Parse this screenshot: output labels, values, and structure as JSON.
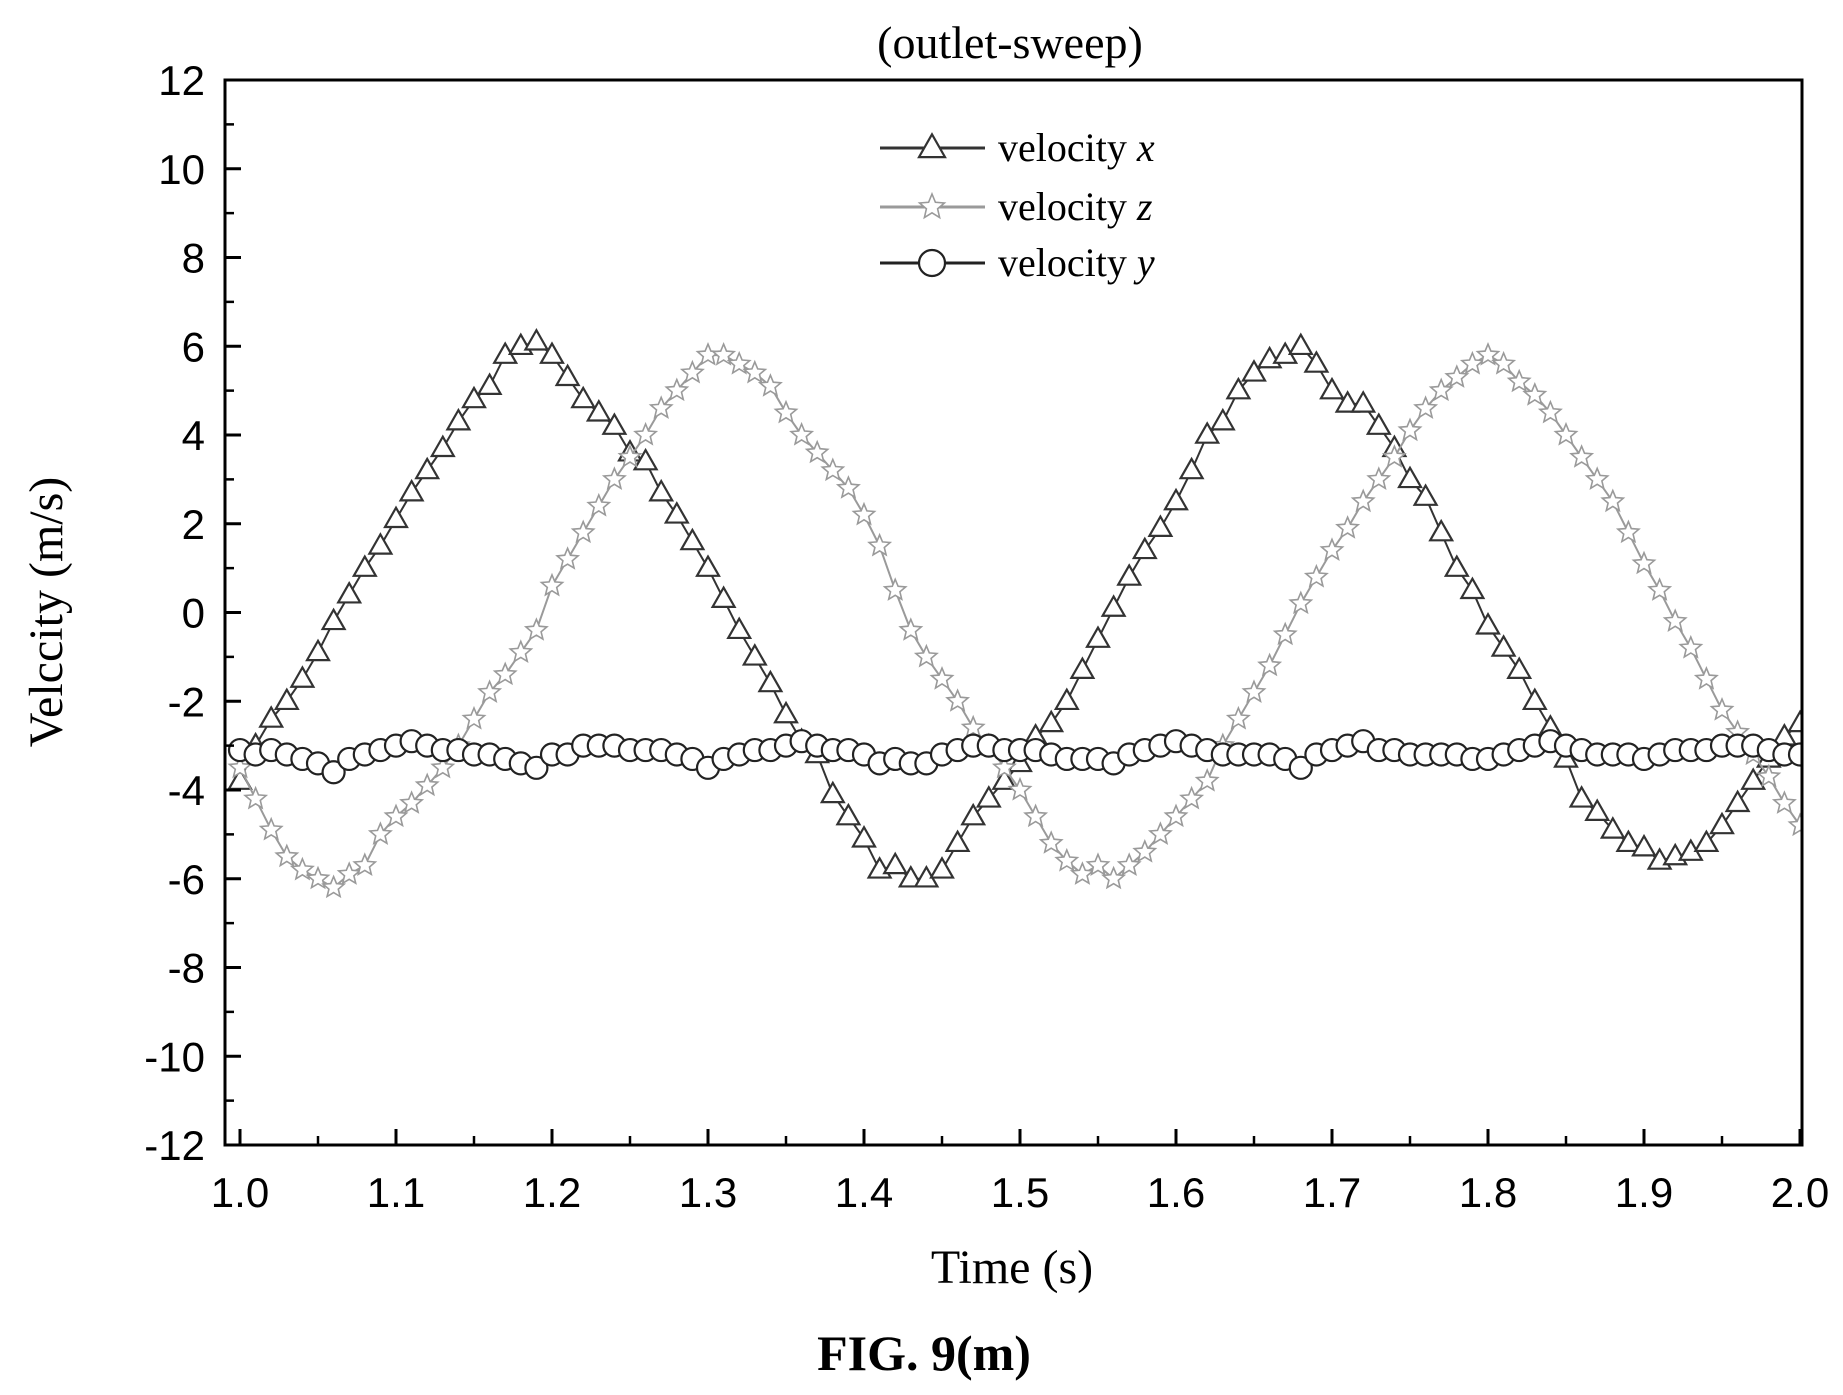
{
  "chart_data": {
    "type": "line",
    "title": "(outlet-sweep)",
    "xlabel": "Time (s)",
    "ylabel": "Velccity (m/s)",
    "caption": "FIG. 9(m)",
    "xlim": [
      1.0,
      2.0
    ],
    "ylim": [
      -12,
      12
    ],
    "x_ticks": [
      "1.0",
      "1.1",
      "1.2",
      "1.3",
      "1.4",
      "1.5",
      "1.6",
      "1.7",
      "1.8",
      "1.9",
      "2.0"
    ],
    "y_ticks": [
      "12",
      "10",
      "8",
      "6",
      "4",
      "2",
      "0",
      "-2",
      "-4",
      "-6",
      "-8",
      "-10",
      "-12"
    ],
    "grid": false,
    "legend_position": "top-center",
    "series": [
      {
        "name": "velocity x",
        "marker": "triangle",
        "color": "#333333",
        "x": [
          1.0,
          1.01,
          1.02,
          1.03,
          1.04,
          1.05,
          1.06,
          1.07,
          1.08,
          1.09,
          1.1,
          1.11,
          1.12,
          1.13,
          1.14,
          1.15,
          1.16,
          1.17,
          1.18,
          1.19,
          1.2,
          1.21,
          1.22,
          1.23,
          1.24,
          1.25,
          1.26,
          1.27,
          1.28,
          1.29,
          1.3,
          1.31,
          1.32,
          1.33,
          1.34,
          1.35,
          1.36,
          1.37,
          1.38,
          1.39,
          1.4,
          1.41,
          1.42,
          1.43,
          1.44,
          1.45,
          1.46,
          1.47,
          1.48,
          1.49,
          1.5,
          1.51,
          1.52,
          1.53,
          1.54,
          1.55,
          1.56,
          1.57,
          1.58,
          1.59,
          1.6,
          1.61,
          1.62,
          1.63,
          1.64,
          1.65,
          1.66,
          1.67,
          1.68,
          1.69,
          1.7,
          1.71,
          1.72,
          1.73,
          1.74,
          1.75,
          1.76,
          1.77,
          1.78,
          1.79,
          1.8,
          1.81,
          1.82,
          1.83,
          1.84,
          1.85,
          1.86,
          1.87,
          1.88,
          1.89,
          1.9,
          1.91,
          1.92,
          1.93,
          1.94,
          1.95,
          1.96,
          1.97,
          1.98,
          1.99,
          2.0
        ],
        "y": [
          -3.8,
          -3.0,
          -2.4,
          -2.0,
          -1.5,
          -0.9,
          -0.2,
          0.4,
          1.0,
          1.5,
          2.1,
          2.7,
          3.2,
          3.7,
          4.3,
          4.8,
          5.1,
          5.8,
          6.0,
          6.1,
          5.8,
          5.3,
          4.8,
          4.5,
          4.2,
          3.6,
          3.4,
          2.7,
          2.2,
          1.6,
          1.0,
          0.3,
          -0.4,
          -1.0,
          -1.6,
          -2.3,
          -2.9,
          -3.2,
          -4.1,
          -4.6,
          -5.1,
          -5.8,
          -5.7,
          -6.0,
          -6.0,
          -5.8,
          -5.2,
          -4.6,
          -4.2,
          -3.8,
          -3.4,
          -2.8,
          -2.5,
          -2.0,
          -1.3,
          -0.6,
          0.1,
          0.8,
          1.4,
          1.9,
          2.5,
          3.2,
          4.0,
          4.3,
          5.0,
          5.4,
          5.7,
          5.8,
          6.0,
          5.6,
          5.0,
          4.7,
          4.7,
          4.2,
          3.7,
          3.0,
          2.6,
          1.8,
          1.0,
          0.5,
          -0.3,
          -0.8,
          -1.3,
          -2.0,
          -2.6,
          -3.3,
          -4.2,
          -4.5,
          -4.9,
          -5.2,
          -5.3,
          -5.6,
          -5.5,
          -5.4,
          -5.2,
          -4.8,
          -4.3,
          -3.8,
          -3.3,
          -2.8,
          -2.5
        ]
      },
      {
        "name": "velocity z",
        "marker": "star",
        "color": "#9a9a9a",
        "x": [
          1.0,
          1.01,
          1.02,
          1.03,
          1.04,
          1.05,
          1.06,
          1.07,
          1.08,
          1.09,
          1.1,
          1.11,
          1.12,
          1.13,
          1.14,
          1.15,
          1.16,
          1.17,
          1.18,
          1.19,
          1.2,
          1.21,
          1.22,
          1.23,
          1.24,
          1.25,
          1.26,
          1.27,
          1.28,
          1.29,
          1.3,
          1.31,
          1.32,
          1.33,
          1.34,
          1.35,
          1.36,
          1.37,
          1.38,
          1.39,
          1.4,
          1.41,
          1.42,
          1.43,
          1.44,
          1.45,
          1.46,
          1.47,
          1.48,
          1.49,
          1.5,
          1.51,
          1.52,
          1.53,
          1.54,
          1.55,
          1.56,
          1.57,
          1.58,
          1.59,
          1.6,
          1.61,
          1.62,
          1.63,
          1.64,
          1.65,
          1.66,
          1.67,
          1.68,
          1.69,
          1.7,
          1.71,
          1.72,
          1.73,
          1.74,
          1.75,
          1.76,
          1.77,
          1.78,
          1.79,
          1.8,
          1.81,
          1.82,
          1.83,
          1.84,
          1.85,
          1.86,
          1.87,
          1.88,
          1.89,
          1.9,
          1.91,
          1.92,
          1.93,
          1.94,
          1.95,
          1.96,
          1.97,
          1.98,
          1.99,
          2.0
        ],
        "y": [
          -3.5,
          -4.2,
          -4.9,
          -5.5,
          -5.8,
          -6.0,
          -6.2,
          -5.9,
          -5.7,
          -5.0,
          -4.6,
          -4.3,
          -3.9,
          -3.5,
          -3.0,
          -2.4,
          -1.8,
          -1.4,
          -0.9,
          -0.4,
          0.6,
          1.2,
          1.8,
          2.4,
          3.0,
          3.5,
          4.0,
          4.6,
          5.0,
          5.4,
          5.8,
          5.8,
          5.6,
          5.4,
          5.1,
          4.5,
          4.0,
          3.6,
          3.2,
          2.8,
          2.2,
          1.5,
          0.5,
          -0.4,
          -1.0,
          -1.5,
          -2.0,
          -2.6,
          -3.0,
          -3.5,
          -4.0,
          -4.6,
          -5.2,
          -5.6,
          -5.9,
          -5.7,
          -6.0,
          -5.7,
          -5.4,
          -5.0,
          -4.6,
          -4.2,
          -3.8,
          -3.0,
          -2.4,
          -1.8,
          -1.2,
          -0.5,
          0.2,
          0.8,
          1.4,
          1.9,
          2.5,
          3.0,
          3.5,
          4.1,
          4.6,
          5.0,
          5.3,
          5.6,
          5.8,
          5.6,
          5.2,
          4.9,
          4.5,
          4.0,
          3.5,
          3.0,
          2.5,
          1.8,
          1.1,
          0.5,
          -0.2,
          -0.8,
          -1.5,
          -2.2,
          -2.7,
          -3.2,
          -3.7,
          -4.3,
          -4.8
        ]
      },
      {
        "name": "velocity y",
        "marker": "circle",
        "color": "#222222",
        "x": [
          1.0,
          1.01,
          1.02,
          1.03,
          1.04,
          1.05,
          1.06,
          1.07,
          1.08,
          1.09,
          1.1,
          1.11,
          1.12,
          1.13,
          1.14,
          1.15,
          1.16,
          1.17,
          1.18,
          1.19,
          1.2,
          1.21,
          1.22,
          1.23,
          1.24,
          1.25,
          1.26,
          1.27,
          1.28,
          1.29,
          1.3,
          1.31,
          1.32,
          1.33,
          1.34,
          1.35,
          1.36,
          1.37,
          1.38,
          1.39,
          1.4,
          1.41,
          1.42,
          1.43,
          1.44,
          1.45,
          1.46,
          1.47,
          1.48,
          1.49,
          1.5,
          1.51,
          1.52,
          1.53,
          1.54,
          1.55,
          1.56,
          1.57,
          1.58,
          1.59,
          1.6,
          1.61,
          1.62,
          1.63,
          1.64,
          1.65,
          1.66,
          1.67,
          1.68,
          1.69,
          1.7,
          1.71,
          1.72,
          1.73,
          1.74,
          1.75,
          1.76,
          1.77,
          1.78,
          1.79,
          1.8,
          1.81,
          1.82,
          1.83,
          1.84,
          1.85,
          1.86,
          1.87,
          1.88,
          1.89,
          1.9,
          1.91,
          1.92,
          1.93,
          1.94,
          1.95,
          1.96,
          1.97,
          1.98,
          1.99,
          2.0
        ],
        "y": [
          -3.1,
          -3.2,
          -3.1,
          -3.2,
          -3.3,
          -3.4,
          -3.6,
          -3.3,
          -3.2,
          -3.1,
          -3.0,
          -2.9,
          -3.0,
          -3.1,
          -3.1,
          -3.2,
          -3.2,
          -3.3,
          -3.4,
          -3.5,
          -3.2,
          -3.2,
          -3.0,
          -3.0,
          -3.0,
          -3.1,
          -3.1,
          -3.1,
          -3.2,
          -3.3,
          -3.5,
          -3.3,
          -3.2,
          -3.1,
          -3.1,
          -3.0,
          -2.9,
          -3.0,
          -3.1,
          -3.1,
          -3.2,
          -3.4,
          -3.3,
          -3.4,
          -3.4,
          -3.2,
          -3.1,
          -3.0,
          -3.0,
          -3.1,
          -3.1,
          -3.1,
          -3.2,
          -3.3,
          -3.3,
          -3.3,
          -3.4,
          -3.2,
          -3.1,
          -3.0,
          -2.9,
          -3.0,
          -3.1,
          -3.2,
          -3.2,
          -3.2,
          -3.2,
          -3.3,
          -3.5,
          -3.2,
          -3.1,
          -3.0,
          -2.9,
          -3.1,
          -3.1,
          -3.2,
          -3.2,
          -3.2,
          -3.2,
          -3.3,
          -3.3,
          -3.2,
          -3.1,
          -3.0,
          -2.9,
          -3.0,
          -3.1,
          -3.2,
          -3.2,
          -3.2,
          -3.3,
          -3.2,
          -3.1,
          -3.1,
          -3.1,
          -3.0,
          -3.0,
          -3.0,
          -3.1,
          -3.2,
          -3.2
        ]
      }
    ]
  }
}
